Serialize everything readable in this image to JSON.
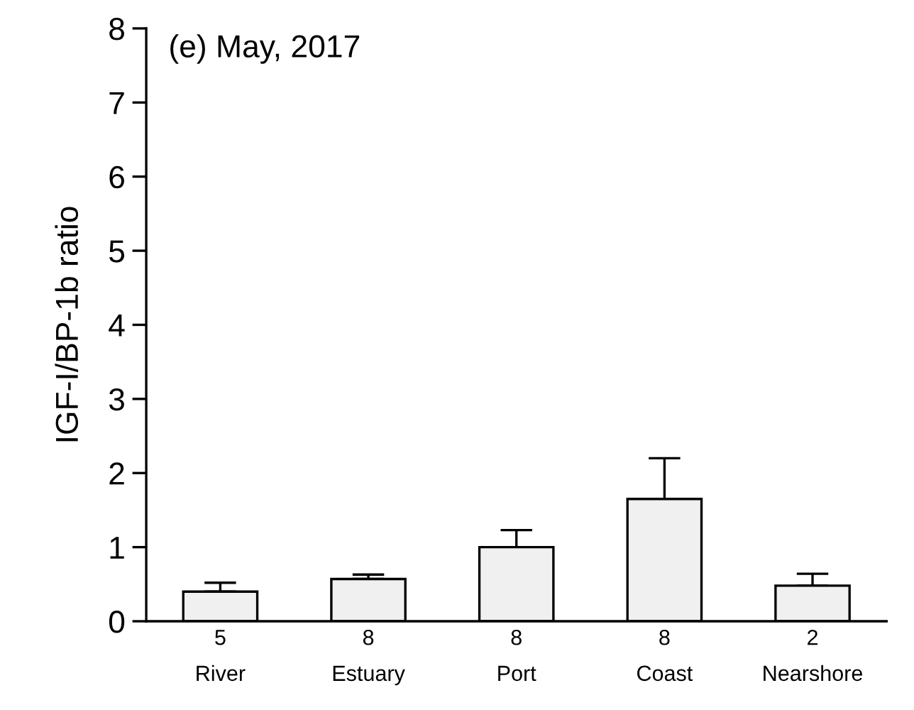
{
  "chart_data": {
    "type": "bar",
    "title": "(e) May, 2017",
    "ylabel": "IGF-I/BP-1b ratio",
    "categories": [
      "5\nRiver",
      "8\nEstuary",
      "8\nPort",
      "8\nCoast",
      "2\nNearshore"
    ],
    "values": [
      0.4,
      0.57,
      1.0,
      1.65,
      0.48
    ],
    "errors": [
      [
        0.4,
        0.52
      ],
      [
        0.57,
        0.63
      ],
      [
        1.0,
        1.23
      ],
      [
        1.65,
        2.2
      ],
      [
        0.48,
        0.64
      ]
    ],
    "color": "#f0f0f0",
    "ylim": [
      0,
      8
    ],
    "yticks": [
      0,
      1,
      2,
      3,
      4,
      5,
      6,
      7,
      8
    ],
    "grid": false,
    "legend": false
  }
}
